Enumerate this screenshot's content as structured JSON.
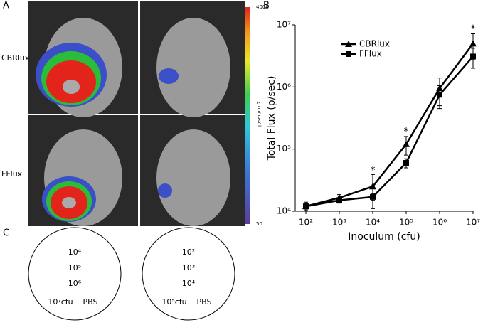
{
  "panels": {
    "a": "A",
    "b": "B",
    "c": "C"
  },
  "row_labels": [
    "CBRlux",
    "FFlux"
  ],
  "colorbar": {
    "max": 4000,
    "min": 50,
    "unit": "p/sec/cm2"
  },
  "plates": [
    {
      "labels": [
        "10⁴",
        "10⁵",
        "10⁶",
        "10⁷cfu",
        "PBS"
      ]
    },
    {
      "labels": [
        "10²",
        "10³",
        "10⁴",
        "10⁵cfu",
        "PBS"
      ]
    }
  ],
  "chart_data": {
    "type": "line",
    "x_label": "Inoculum (cfu)",
    "y_label": "Total Flux (p/sec)",
    "log_x": true,
    "log_y": true,
    "legend": "upper left",
    "x": [
      100,
      1000,
      10000,
      100000,
      1000000,
      10000000
    ],
    "xlim": [
      48,
      10000000
    ],
    "xticks": [
      {
        "value": 100,
        "label": "10²"
      },
      {
        "value": 1000,
        "label": "10³"
      },
      {
        "value": 10000,
        "label": "10⁴"
      },
      {
        "value": 100000,
        "label": "10⁵"
      },
      {
        "value": 1000000,
        "label": "10⁶"
      },
      {
        "value": 10000000,
        "label": "10⁷"
      }
    ],
    "ylim": [
      10000,
      10000000
    ],
    "yticks": [
      {
        "value": 10000,
        "label": "10⁴"
      },
      {
        "value": 100000,
        "label": "10⁵"
      },
      {
        "value": 1000000,
        "label": "10⁶"
      },
      {
        "value": 10000000,
        "label": "10⁷"
      }
    ],
    "series": [
      {
        "name": "CBRlux",
        "color": "#000000",
        "marker": "triangle",
        "values": [
          12000,
          16500,
          25000,
          120000,
          950000,
          5000000
        ],
        "errors": [
          2000,
          2000,
          14000,
          40000,
          450000,
          2200000
        ]
      },
      {
        "name": "FFlux",
        "color": "#000000",
        "marker": "square",
        "values": [
          12000,
          15000,
          17000,
          60000,
          750000,
          3100000
        ],
        "errors": [
          1500,
          1500,
          2000,
          10000,
          300000,
          1100000
        ]
      }
    ],
    "annotations": [
      {
        "x": 10000,
        "y": 45000,
        "text": "*"
      },
      {
        "x": 100000,
        "y": 190000,
        "text": "*"
      },
      {
        "x": 10000000,
        "y": 8500000,
        "text": "*"
      }
    ]
  }
}
